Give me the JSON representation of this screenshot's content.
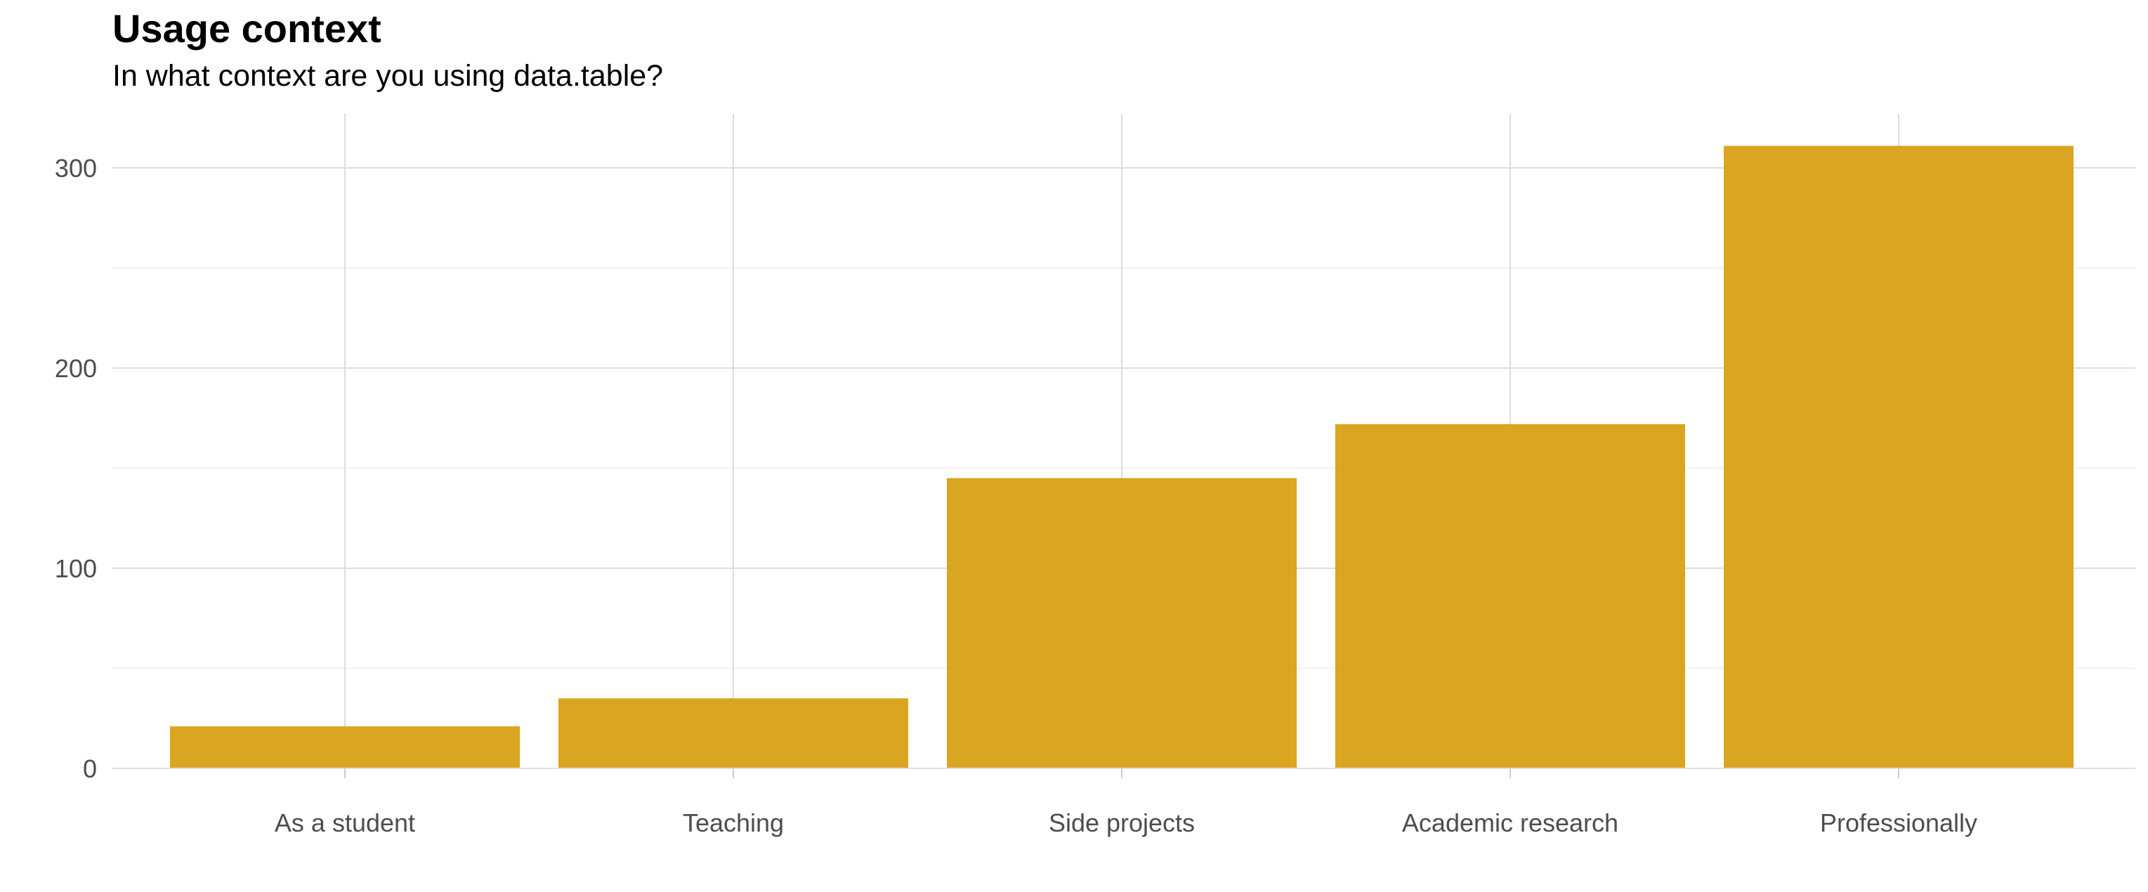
{
  "title": "Usage context",
  "subtitle": "In what context are you using data.table?",
  "chart_data": {
    "type": "bar",
    "title": "Usage context",
    "subtitle": "In what context are you using data.table?",
    "xlabel": "",
    "ylabel": "",
    "categories": [
      "As a student",
      "Teaching",
      "Side projects",
      "Academic research",
      "Professionally"
    ],
    "values": [
      21,
      35,
      145,
      172,
      311
    ],
    "ylim": [
      0,
      311
    ],
    "yticks": [
      0,
      100,
      200,
      300
    ],
    "grid": true,
    "legend": "none",
    "bar_color": "#DAA520",
    "grid_color": "#dddddd",
    "minor_grid_color": "#eeeeee"
  }
}
